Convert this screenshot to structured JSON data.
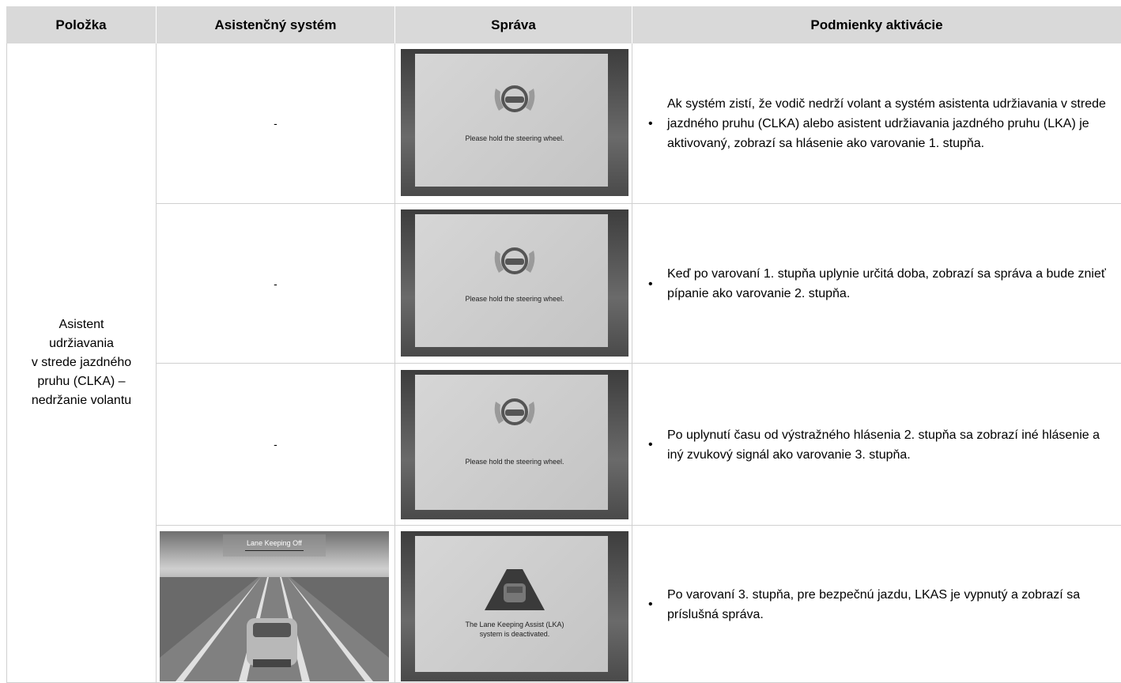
{
  "table": {
    "headers": [
      "Položka",
      "Asistenčný systém",
      "Správa",
      "Podmienky aktivácie"
    ],
    "item": {
      "lines": [
        "Asistent",
        "udržiavania",
        "v strede jazdného",
        "pruhu (CLKA) –",
        "nedržanie volantu"
      ]
    },
    "rows": [
      {
        "system": "-",
        "message": [
          "Please hold the steering wheel."
        ],
        "condition": "Ak systém zistí, že vodič nedrží volant a systém asistenta udržiavania v strede jazdného pruhu (CLKA) alebo asistent udržiavania jazdného pruhu (LKA) je aktivovaný, zobrazí sa hlásenie ako varovanie 1. stupňa."
      },
      {
        "system": "-",
        "message": [
          "Please hold the steering wheel."
        ],
        "condition": "Keď po varovaní 1. stupňa uplynie určitá doba, zobrazí sa správa a bude znieť pípanie ako varovanie 2. stupňa."
      },
      {
        "system": "-",
        "message": [
          "Please hold the steering wheel."
        ],
        "condition": "Po uplynutí času od výstražného hlásenia 2. stupňa sa zobrazí iné hlásenie a iný zvukový signál ako varovanie 3. stupňa."
      },
      {
        "system": "Lane Keeping Off",
        "message": [
          "The Lane Keeping Assist (LKA)",
          "system is deactivated."
        ],
        "condition": "Po varovaní 3. stupňa, pre bezpečnú jazdu, LKAS je vypnutý a zobrazí sa príslušná správa."
      }
    ]
  }
}
